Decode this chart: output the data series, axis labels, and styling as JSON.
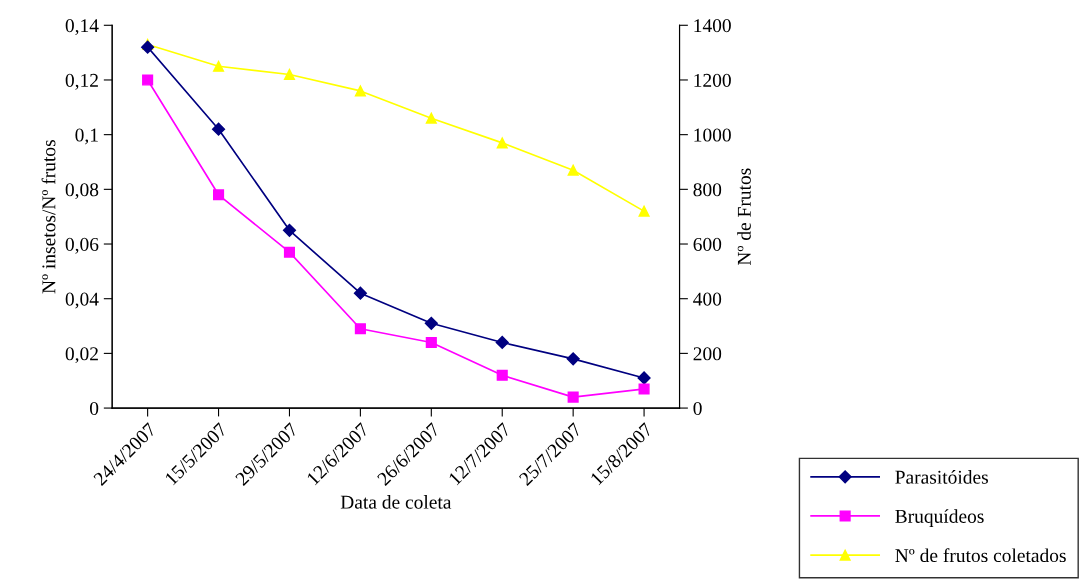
{
  "chart_data": {
    "type": "line",
    "xlabel": "Data de coleta",
    "ylabel": "Nº insetos/Nº frutos",
    "y2label": "Nº de Frutos",
    "categories": [
      "24/4/2007",
      "15/5/2007",
      "29/5/2007",
      "12/6/2007",
      "26/6/2007",
      "12/7/2007",
      "25/7/2007",
      "15/8/2007"
    ],
    "series": [
      {
        "name": "Parasitóides",
        "color": "#000080",
        "marker": "diamond",
        "values": [
          0.132,
          0.102,
          0.065,
          0.042,
          0.031,
          0.024,
          0.018,
          0.011
        ]
      },
      {
        "name": "Bruquídeos",
        "color": "#ff00ff",
        "marker": "square",
        "values": [
          0.12,
          0.078,
          0.057,
          0.029,
          0.024,
          0.012,
          0.004,
          0.007
        ]
      },
      {
        "name": "Nº de frutos coletados",
        "color": "#ffff00",
        "marker": "triangle",
        "axis": "y2",
        "values": [
          1330,
          1250,
          1220,
          1160,
          1060,
          970,
          870,
          720
        ]
      }
    ],
    "ylim": [
      0,
      0.14
    ],
    "yticks": [
      0,
      {
        "value": 0.02,
        "label": "0,02"
      },
      {
        "value": 0.04,
        "label": "0,04"
      },
      {
        "value": 0.06,
        "label": "0,06"
      },
      {
        "value": 0.08,
        "label": "0,08"
      },
      {
        "value": 0.1,
        "label": "0,1"
      },
      {
        "value": 0.12,
        "label": "0,12"
      },
      {
        "value": 0.14,
        "label": "0,14"
      }
    ],
    "y2lim": [
      0,
      1400
    ],
    "y2ticks": [
      0,
      200,
      400,
      600,
      800,
      1000,
      1200,
      1400
    ],
    "grid": false,
    "legend": "bottom right",
    "line_style": "solid"
  }
}
